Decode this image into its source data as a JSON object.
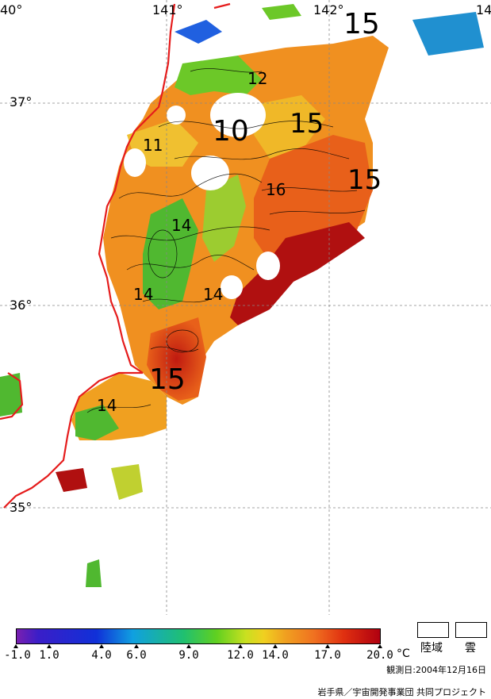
{
  "map": {
    "longitude_labels": [
      "40°",
      "141°",
      "142°",
      "14"
    ],
    "latitude_labels": [
      "37°",
      "36°",
      "35°"
    ],
    "contour_labels": [
      "15",
      "12",
      "10",
      "15",
      "11",
      "16",
      "15",
      "14",
      "14",
      "14",
      "15",
      "14"
    ],
    "colors": {
      "coast": "#e51c1c",
      "warm": "#f07a1a",
      "hot": "#b01010",
      "mid": "#f0b030",
      "cool": "#60c030",
      "cold": "#2060e0",
      "grid": "#888888"
    }
  },
  "legend": {
    "tick_labels": [
      "-1.0",
      "1.0",
      "4.0",
      "6.0",
      "9.0",
      "12.0",
      "14.0",
      "17.0",
      "20.0"
    ],
    "unit": "°C",
    "land_label": "陸域",
    "cloud_label": "雲"
  },
  "footer": {
    "obs_date": "観測日:2004年12月16日",
    "credit": "岩手県／宇宙開発事業団  共同プロジェクト"
  }
}
